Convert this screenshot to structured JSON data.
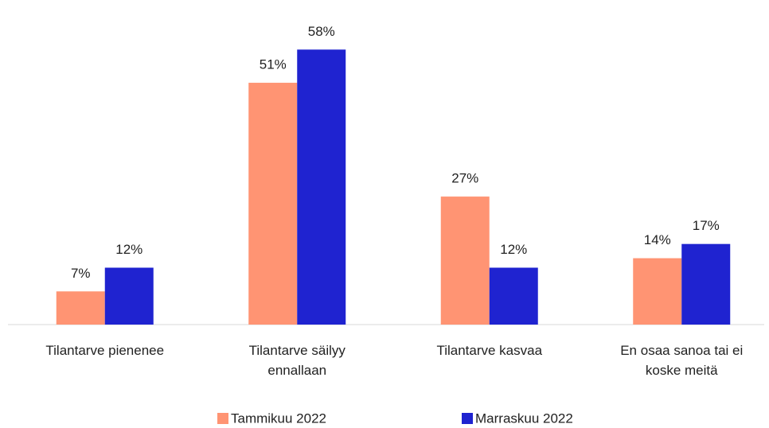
{
  "chart_data": {
    "type": "bar",
    "categories": [
      "Tilantarve pienenee",
      "Tilantarve säilyy ennallaan",
      "Tilantarve kasvaa",
      "En osaa sanoa tai ei koske meitä"
    ],
    "series": [
      {
        "name": "Tammikuu 2022",
        "color": "#ff9473",
        "values": [
          7,
          51,
          27,
          14
        ],
        "value_labels": [
          "7%",
          "51%",
          "27%",
          "14%"
        ]
      },
      {
        "name": "Marraskuu 2022",
        "color": "#1f23d0",
        "values": [
          12,
          58,
          12,
          17
        ],
        "value_labels": [
          "12%",
          "58%",
          "12%",
          "17%"
        ]
      }
    ],
    "legend": "bottom"
  }
}
